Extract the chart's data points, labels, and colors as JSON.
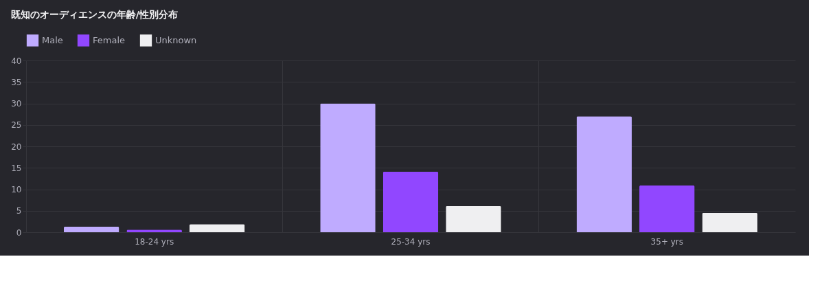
{
  "chart_data": {
    "type": "bar",
    "title": "既知のオーディエンスの年齢/性別分布",
    "categories": [
      "18-24 yrs",
      "25-34 yrs",
      "35+ yrs"
    ],
    "series": [
      {
        "name": "Male",
        "color": "#bfabff",
        "values": [
          1.3,
          30,
          27
        ]
      },
      {
        "name": "Female",
        "color": "#9147ff",
        "values": [
          0.6,
          14.1,
          10.9
        ]
      },
      {
        "name": "Unknown",
        "color": "#efeff1",
        "values": [
          1.9,
          6.1,
          4.5
        ]
      }
    ],
    "ylim": [
      0,
      40
    ],
    "yticks": [
      0,
      5,
      10,
      15,
      20,
      25,
      30,
      35,
      40
    ],
    "grid": true,
    "legend": "top"
  }
}
